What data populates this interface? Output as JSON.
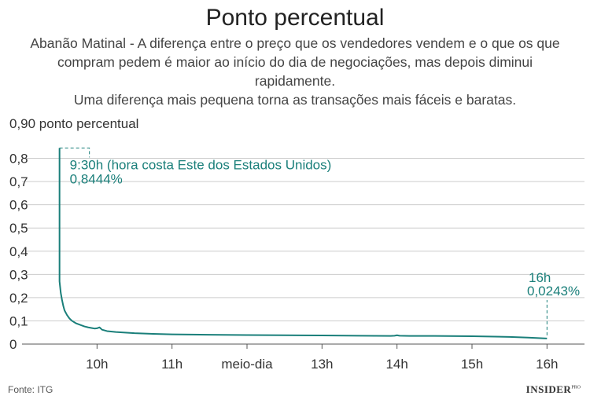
{
  "chart_data": {
    "type": "line",
    "title": "Ponto percentual",
    "subtitle_lines": [
      "Abanão Matinal - A diferença entre o preço que os vendedores vendem e o que os que",
      "compram pedem é maior ao início do dia de negociações, mas depois diminui rapidamente.",
      "Uma diferença mais pequena torna as transações mais fáceis e baratas."
    ],
    "ylabel": "0,90 ponto percentual",
    "ylim": [
      0,
      0.9
    ],
    "yticks": [
      {
        "value": 0,
        "label": "0"
      },
      {
        "value": 0.1,
        "label": "0,1"
      },
      {
        "value": 0.2,
        "label": "0,2"
      },
      {
        "value": 0.3,
        "label": "0,3"
      },
      {
        "value": 0.4,
        "label": "0,4"
      },
      {
        "value": 0.5,
        "label": "0,5"
      },
      {
        "value": 0.6,
        "label": "0,6"
      },
      {
        "value": 0.7,
        "label": "0,7"
      },
      {
        "value": 0.8,
        "label": "0,8"
      }
    ],
    "xlim": [
      "09:00",
      "16:30"
    ],
    "xticks": [
      {
        "time": "10:00",
        "label": "10h"
      },
      {
        "time": "11:00",
        "label": "11h"
      },
      {
        "time": "12:00",
        "label": "meio-dia"
      },
      {
        "time": "13:00",
        "label": "13h"
      },
      {
        "time": "14:00",
        "label": "14h"
      },
      {
        "time": "15:00",
        "label": "15h"
      },
      {
        "time": "16:00",
        "label": "16h"
      }
    ],
    "series": [
      {
        "color": "#1a7f7a",
        "points": [
          [
            "09:30",
            0.8444
          ],
          [
            "09:30",
            0.27
          ],
          [
            "09:31",
            0.22
          ],
          [
            "09:32",
            0.19
          ],
          [
            "09:33",
            0.165
          ],
          [
            "09:34",
            0.145
          ],
          [
            "09:36",
            0.125
          ],
          [
            "09:38",
            0.11
          ],
          [
            "09:40",
            0.1
          ],
          [
            "09:43",
            0.09
          ],
          [
            "09:47",
            0.082
          ],
          [
            "09:50",
            0.076
          ],
          [
            "09:53",
            0.072
          ],
          [
            "09:56",
            0.069
          ],
          [
            "09:58",
            0.067
          ],
          [
            "10:00",
            0.068
          ],
          [
            "10:02",
            0.072
          ],
          [
            "10:04",
            0.062
          ],
          [
            "10:08",
            0.056
          ],
          [
            "10:15",
            0.052
          ],
          [
            "10:30",
            0.047
          ],
          [
            "10:45",
            0.044
          ],
          [
            "11:00",
            0.042
          ],
          [
            "11:30",
            0.04
          ],
          [
            "12:00",
            0.039
          ],
          [
            "12:30",
            0.038
          ],
          [
            "13:00",
            0.037
          ],
          [
            "13:30",
            0.036
          ],
          [
            "13:55",
            0.035
          ],
          [
            "13:58",
            0.036
          ],
          [
            "14:00",
            0.038
          ],
          [
            "14:02",
            0.036
          ],
          [
            "14:10",
            0.035
          ],
          [
            "14:30",
            0.035
          ],
          [
            "15:00",
            0.034
          ],
          [
            "15:30",
            0.031
          ],
          [
            "15:45",
            0.028
          ],
          [
            "16:00",
            0.0243
          ]
        ]
      }
    ],
    "annotations": [
      {
        "time": "09:30",
        "value": 0.8444,
        "lines": [
          "9:30h (hora costa Este dos Estados Unidos)",
          "0,8444%"
        ]
      },
      {
        "time": "16:00",
        "value": 0.0243,
        "lines": [
          "16h",
          "0,0243%"
        ]
      }
    ]
  },
  "footer": {
    "source": "Fonte: ITG",
    "brand": "INSIDER",
    "brand_sup": "PRO"
  },
  "colors": {
    "line": "#1a7f7a",
    "annotation": "#1a7f7a",
    "grid": "#cccccc",
    "axis": "#555555",
    "text": "#333333"
  }
}
